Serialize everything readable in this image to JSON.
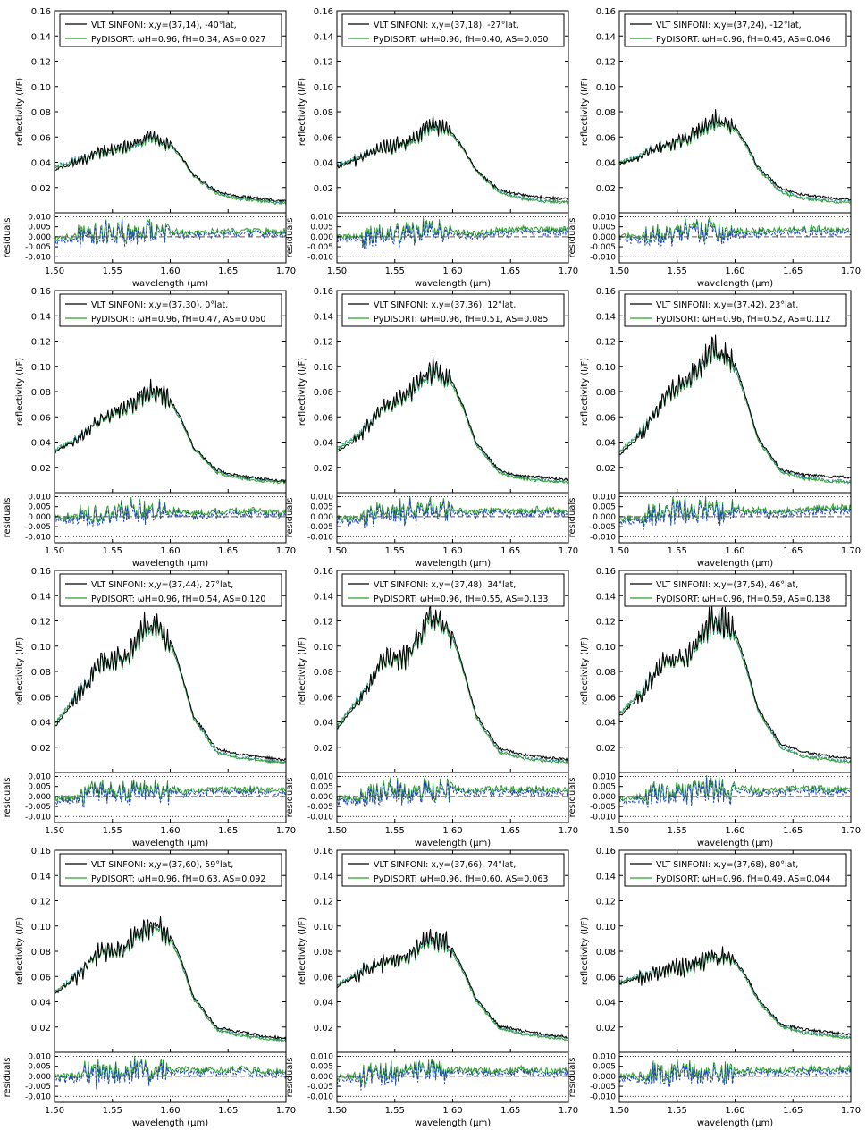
{
  "figure": {
    "columns": 3,
    "rows": 4
  },
  "common": {
    "type": "line",
    "xlabel": "wavelength (μm)",
    "ylabel_main": "reflectivity (I/F)",
    "ylabel_resid": "residuals",
    "xlim": [
      1.5,
      1.7
    ],
    "xticks": [
      1.5,
      1.55,
      1.6,
      1.65,
      1.7
    ],
    "xtick_labels": [
      "1.50",
      "1.55",
      "1.60",
      "1.65",
      "1.70"
    ],
    "main_ylim": [
      0,
      0.16
    ],
    "main_yticks": [
      0.02,
      0.04,
      0.06,
      0.08,
      0.1,
      0.12,
      0.14,
      0.16
    ],
    "main_ytick_labels": [
      "0.02",
      "0.04",
      "0.06",
      "0.08",
      "0.10",
      "0.12",
      "0.14",
      "0.16"
    ],
    "resid_ylim": [
      -0.013,
      0.012
    ],
    "resid_yticks": [
      0.01,
      0.005,
      0.0,
      -0.005,
      -0.01
    ],
    "resid_ytick_labels": [
      "0.010",
      "0.005",
      "0.000",
      "-0.005",
      "-0.010"
    ],
    "resid_dotted_levels": [
      0.01,
      -0.01
    ],
    "legend_location": "top",
    "colors": {
      "observed": "#000000",
      "model_green": "#2ca02c",
      "model_blue": "#1f3fbf",
      "model_cyan": "#2a8a9a",
      "zero_line": "#555555",
      "frame": "#000000"
    }
  },
  "chart_data": [
    {
      "panel": 1,
      "series_names": [
        "VLT SINFONI: x,y=(37,14), -40°lat,",
        "PyDISORT: ωH=0.96,  fH=0.34,  AS=0.027"
      ],
      "x": [
        1.5,
        1.52,
        1.54,
        1.56,
        1.58,
        1.59,
        1.6,
        1.61,
        1.62,
        1.64,
        1.66,
        1.68,
        1.7
      ],
      "y_obs": [
        0.034,
        0.04,
        0.049,
        0.052,
        0.06,
        0.059,
        0.056,
        0.044,
        0.03,
        0.017,
        0.013,
        0.011,
        0.009
      ],
      "y_model": [
        0.036,
        0.041,
        0.047,
        0.05,
        0.057,
        0.057,
        0.054,
        0.043,
        0.029,
        0.015,
        0.011,
        0.009,
        0.007
      ]
    },
    {
      "panel": 2,
      "series_names": [
        "VLT SINFONI: x,y=(37,18), -27°lat,",
        "PyDISORT: ωH=0.96,  fH=0.40,  AS=0.050"
      ],
      "x": [
        1.5,
        1.52,
        1.54,
        1.56,
        1.58,
        1.59,
        1.6,
        1.61,
        1.62,
        1.64,
        1.66,
        1.68,
        1.7
      ],
      "y_obs": [
        0.036,
        0.043,
        0.052,
        0.056,
        0.069,
        0.068,
        0.063,
        0.05,
        0.034,
        0.018,
        0.014,
        0.012,
        0.011
      ],
      "y_model": [
        0.037,
        0.044,
        0.051,
        0.054,
        0.066,
        0.066,
        0.061,
        0.049,
        0.033,
        0.016,
        0.011,
        0.009,
        0.008
      ]
    },
    {
      "panel": 3,
      "series_names": [
        "VLT SINFONI: x,y=(37,24), -12°lat,",
        "PyDISORT: ωH=0.96,  fH=0.45,  AS=0.046"
      ],
      "x": [
        1.5,
        1.52,
        1.54,
        1.56,
        1.58,
        1.59,
        1.6,
        1.61,
        1.62,
        1.64,
        1.66,
        1.68,
        1.7
      ],
      "y_obs": [
        0.038,
        0.045,
        0.055,
        0.06,
        0.074,
        0.072,
        0.068,
        0.054,
        0.036,
        0.019,
        0.014,
        0.012,
        0.01
      ],
      "y_model": [
        0.039,
        0.046,
        0.054,
        0.058,
        0.07,
        0.07,
        0.066,
        0.052,
        0.034,
        0.016,
        0.011,
        0.009,
        0.008
      ]
    },
    {
      "panel": 4,
      "series_names": [
        "VLT SINFONI: x,y=(37,30),   0°lat,",
        "PyDISORT: ωH=0.96,  fH=0.47,  AS=0.060"
      ],
      "x": [
        1.5,
        1.52,
        1.54,
        1.56,
        1.58,
        1.59,
        1.6,
        1.61,
        1.62,
        1.64,
        1.66,
        1.68,
        1.7
      ],
      "y_obs": [
        0.032,
        0.042,
        0.058,
        0.066,
        0.081,
        0.08,
        0.074,
        0.058,
        0.036,
        0.018,
        0.013,
        0.011,
        0.009
      ],
      "y_model": [
        0.033,
        0.043,
        0.057,
        0.064,
        0.078,
        0.078,
        0.072,
        0.056,
        0.035,
        0.016,
        0.011,
        0.009,
        0.008
      ]
    },
    {
      "panel": 5,
      "series_names": [
        "VLT SINFONI: x,y=(37,36),  12°lat,",
        "PyDISORT: ωH=0.96,  fH=0.51,  AS=0.085"
      ],
      "x": [
        1.5,
        1.52,
        1.54,
        1.56,
        1.58,
        1.59,
        1.6,
        1.61,
        1.62,
        1.64,
        1.66,
        1.68,
        1.7
      ],
      "y_obs": [
        0.032,
        0.044,
        0.068,
        0.076,
        0.097,
        0.095,
        0.088,
        0.066,
        0.04,
        0.018,
        0.013,
        0.012,
        0.01
      ],
      "y_model": [
        0.034,
        0.046,
        0.066,
        0.074,
        0.093,
        0.092,
        0.085,
        0.064,
        0.038,
        0.016,
        0.011,
        0.009,
        0.008
      ]
    },
    {
      "panel": 6,
      "series_names": [
        "VLT SINFONI: x,y=(37,42),  23°lat,",
        "PyDISORT: ωH=0.96,  fH=0.52,  AS=0.112"
      ],
      "x": [
        1.5,
        1.52,
        1.54,
        1.56,
        1.58,
        1.59,
        1.6,
        1.61,
        1.62,
        1.64,
        1.66,
        1.68,
        1.7
      ],
      "y_obs": [
        0.03,
        0.046,
        0.078,
        0.09,
        0.113,
        0.11,
        0.102,
        0.074,
        0.043,
        0.018,
        0.014,
        0.013,
        0.012
      ],
      "y_model": [
        0.032,
        0.048,
        0.076,
        0.087,
        0.11,
        0.108,
        0.098,
        0.072,
        0.041,
        0.016,
        0.011,
        0.009,
        0.008
      ]
    },
    {
      "panel": 7,
      "series_names": [
        "VLT SINFONI: x,y=(37,44),  27°lat,",
        "PyDISORT: ωH=0.96,  fH=0.54,  AS=0.120"
      ],
      "x": [
        1.5,
        1.52,
        1.54,
        1.56,
        1.58,
        1.59,
        1.6,
        1.61,
        1.62,
        1.64,
        1.66,
        1.68,
        1.7
      ],
      "y_obs": [
        0.036,
        0.06,
        0.088,
        0.09,
        0.118,
        0.114,
        0.105,
        0.078,
        0.045,
        0.019,
        0.014,
        0.012,
        0.01
      ],
      "y_model": [
        0.038,
        0.062,
        0.086,
        0.088,
        0.114,
        0.112,
        0.102,
        0.076,
        0.043,
        0.016,
        0.011,
        0.009,
        0.008
      ]
    },
    {
      "panel": 8,
      "series_names": [
        "VLT SINFONI: x,y=(37,48),  34°lat,",
        "PyDISORT: ωH=0.96,  fH=0.55,  AS=0.133"
      ],
      "x": [
        1.5,
        1.52,
        1.54,
        1.56,
        1.58,
        1.59,
        1.6,
        1.61,
        1.62,
        1.64,
        1.66,
        1.68,
        1.7
      ],
      "y_obs": [
        0.034,
        0.058,
        0.09,
        0.092,
        0.124,
        0.12,
        0.11,
        0.08,
        0.046,
        0.019,
        0.014,
        0.012,
        0.01
      ],
      "y_model": [
        0.036,
        0.06,
        0.088,
        0.09,
        0.12,
        0.118,
        0.106,
        0.078,
        0.044,
        0.016,
        0.011,
        0.009,
        0.008
      ]
    },
    {
      "panel": 9,
      "series_names": [
        "VLT SINFONI: x,y=(37,54),  46°lat,",
        "PyDISORT: ωH=0.96,  fH=0.59,  AS=0.138"
      ],
      "x": [
        1.5,
        1.52,
        1.54,
        1.56,
        1.58,
        1.59,
        1.6,
        1.61,
        1.62,
        1.64,
        1.66,
        1.68,
        1.7
      ],
      "y_obs": [
        0.044,
        0.062,
        0.09,
        0.092,
        0.122,
        0.12,
        0.112,
        0.084,
        0.05,
        0.022,
        0.016,
        0.013,
        0.011
      ],
      "y_model": [
        0.046,
        0.064,
        0.088,
        0.09,
        0.118,
        0.117,
        0.108,
        0.081,
        0.048,
        0.019,
        0.012,
        0.01,
        0.008
      ]
    },
    {
      "panel": 10,
      "series_names": [
        "VLT SINFONI: x,y=(37,60),  59°lat,",
        "PyDISORT: ωH=0.96,  fH=0.63,  AS=0.092"
      ],
      "x": [
        1.5,
        1.52,
        1.54,
        1.56,
        1.58,
        1.59,
        1.6,
        1.61,
        1.62,
        1.64,
        1.66,
        1.68,
        1.7
      ],
      "y_obs": [
        0.046,
        0.06,
        0.08,
        0.082,
        0.102,
        0.1,
        0.093,
        0.072,
        0.044,
        0.02,
        0.016,
        0.013,
        0.011
      ],
      "y_model": [
        0.047,
        0.061,
        0.078,
        0.08,
        0.099,
        0.097,
        0.09,
        0.069,
        0.042,
        0.018,
        0.013,
        0.011,
        0.009
      ]
    },
    {
      "panel": 11,
      "series_names": [
        "VLT SINFONI: x,y=(37,66),  74°lat,",
        "PyDISORT: ωH=0.96,  fH=0.60,  AS=0.063"
      ],
      "x": [
        1.5,
        1.52,
        1.54,
        1.56,
        1.58,
        1.59,
        1.6,
        1.61,
        1.62,
        1.64,
        1.66,
        1.68,
        1.7
      ],
      "y_obs": [
        0.052,
        0.062,
        0.072,
        0.076,
        0.09,
        0.089,
        0.082,
        0.064,
        0.043,
        0.021,
        0.017,
        0.014,
        0.012
      ],
      "y_model": [
        0.053,
        0.063,
        0.071,
        0.074,
        0.087,
        0.086,
        0.079,
        0.062,
        0.041,
        0.019,
        0.014,
        0.012,
        0.01
      ]
    },
    {
      "panel": 12,
      "series_names": [
        "VLT SINFONI: x,y=(37,68),  80°lat,",
        "PyDISORT: ωH=0.96,  fH=0.49,  AS=0.044"
      ],
      "x": [
        1.5,
        1.52,
        1.54,
        1.56,
        1.58,
        1.59,
        1.6,
        1.61,
        1.62,
        1.64,
        1.66,
        1.68,
        1.7
      ],
      "y_obs": [
        0.054,
        0.06,
        0.066,
        0.068,
        0.076,
        0.077,
        0.073,
        0.06,
        0.042,
        0.022,
        0.018,
        0.016,
        0.014
      ],
      "y_model": [
        0.055,
        0.061,
        0.065,
        0.066,
        0.074,
        0.075,
        0.071,
        0.058,
        0.04,
        0.02,
        0.015,
        0.013,
        0.011
      ]
    }
  ]
}
